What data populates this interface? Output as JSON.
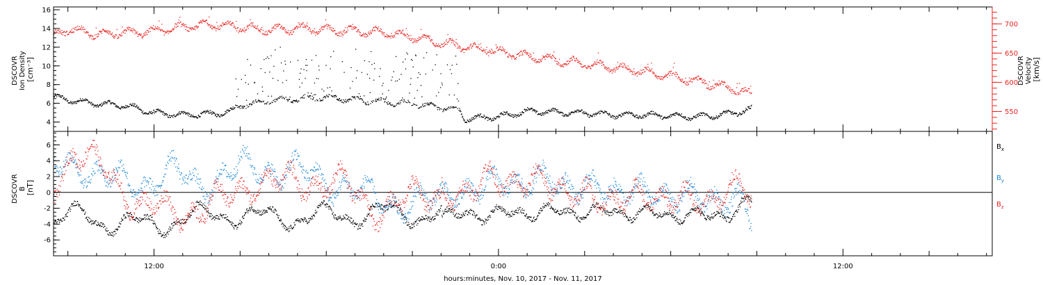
{
  "chart_data": [
    {
      "type": "scatter",
      "panel": "top",
      "xlabel": "hours:minutes, Nov. 10, 2017 - Nov. 11, 2017",
      "x_ticks": [
        "12:00",
        "0:00",
        "12:00"
      ],
      "x_tick_hours": [
        12,
        24,
        36
      ],
      "x_range_hours": [
        8.5,
        41.2
      ],
      "data_end_hour": 32.8,
      "left_axis": {
        "label_lines": [
          "DSCOVR",
          "Ion Density"
        ],
        "unit": "[cm⁻³]",
        "ylim": [
          3,
          16.3
        ],
        "ticks": [
          4,
          6,
          8,
          10,
          12,
          14,
          16
        ],
        "color": "#000000"
      },
      "right_axis": {
        "label_lines": [
          "DSCOVR",
          "Velocity"
        ],
        "unit": "[km/s]",
        "ylim": [
          516,
          729
        ],
        "ticks": [
          550,
          600,
          650,
          700
        ],
        "color": "#e8231f"
      },
      "series": [
        {
          "axis": "left",
          "color": "#000000",
          "points": [
            [
              8.5,
              6.7
            ],
            [
              9,
              6.4
            ],
            [
              10,
              6.0
            ],
            [
              11,
              5.8
            ],
            [
              12,
              5.0
            ],
            [
              13,
              4.8
            ],
            [
              14,
              4.9
            ],
            [
              14.7,
              5.2
            ],
            [
              15,
              5.8
            ],
            [
              16,
              6.3
            ],
            [
              17,
              6.5
            ],
            [
              18,
              6.7
            ],
            [
              19,
              6.4
            ],
            [
              20,
              6.2
            ],
            [
              21,
              6.0
            ],
            [
              22,
              5.6
            ],
            [
              22.6,
              5.4
            ],
            [
              22.8,
              4.4
            ],
            [
              24,
              4.6
            ],
            [
              25,
              5.2
            ],
            [
              26,
              5.1
            ],
            [
              27,
              5.0
            ],
            [
              28,
              4.8
            ],
            [
              29,
              4.8
            ],
            [
              30,
              4.7
            ],
            [
              31,
              4.6
            ],
            [
              32,
              4.9
            ],
            [
              32.8,
              5.4
            ]
          ]
        },
        {
          "axis": "right",
          "color": "#e8231f",
          "points": [
            [
              8.5,
              680
            ],
            [
              9,
              692
            ],
            [
              10,
              683
            ],
            [
              11,
              685
            ],
            [
              12,
              688
            ],
            [
              13,
              695
            ],
            [
              14,
              700
            ],
            [
              15,
              695
            ],
            [
              16,
              690
            ],
            [
              17,
              693
            ],
            [
              18,
              690
            ],
            [
              19,
              688
            ],
            [
              20,
              686
            ],
            [
              21,
              678
            ],
            [
              22,
              668
            ],
            [
              23,
              660
            ],
            [
              24,
              653
            ],
            [
              25,
              645
            ],
            [
              26,
              638
            ],
            [
              27,
              632
            ],
            [
              28,
              626
            ],
            [
              29,
              619
            ],
            [
              30,
              611
            ],
            [
              31,
              601
            ],
            [
              32,
              592
            ],
            [
              32.8,
              580
            ]
          ]
        }
      ]
    },
    {
      "type": "scatter",
      "panel": "bottom",
      "xlabel": "hours:minutes, Nov. 10, 2017 - Nov. 11, 2017",
      "x_ticks": [
        "12:00",
        "0:00",
        "12:00"
      ],
      "x_tick_hours": [
        12,
        24,
        36
      ],
      "x_range_hours": [
        8.5,
        41.2
      ],
      "data_end_hour": 32.8,
      "left_axis": {
        "label_lines": [
          "DSCOVR",
          "B"
        ],
        "unit": "[nT]",
        "ylim": [
          -8,
          7.7
        ],
        "ticks": [
          -6,
          -4,
          -2,
          0,
          2,
          4,
          6
        ],
        "color": "#000000"
      },
      "zero_line": true,
      "legend": {
        "placement": "right"
      },
      "series": [
        {
          "name": "B",
          "sub": "x",
          "color": "#000000",
          "points": [
            [
              8.5,
              -3.6
            ],
            [
              9.5,
              -2.8
            ],
            [
              10.5,
              -3.8
            ],
            [
              11.5,
              -4.1
            ],
            [
              12.5,
              -3.6
            ],
            [
              13.5,
              -3.0
            ],
            [
              14.5,
              -2.5
            ],
            [
              15.5,
              -3.2
            ],
            [
              16.5,
              -3.0
            ],
            [
              17.5,
              -3.2
            ],
            [
              18.5,
              -2.8
            ],
            [
              19.5,
              -2.6
            ],
            [
              20.5,
              -2.5
            ],
            [
              21.5,
              -2.8
            ],
            [
              22.5,
              -2.9
            ],
            [
              23.5,
              -2.7
            ],
            [
              24.5,
              -2.6
            ],
            [
              25.5,
              -2.3
            ],
            [
              26.5,
              -2.5
            ],
            [
              27.5,
              -2.4
            ],
            [
              28.5,
              -2.5
            ],
            [
              29.5,
              -2.6
            ],
            [
              30.5,
              -2.8
            ],
            [
              31.5,
              -2.9
            ],
            [
              32.3,
              -2.3
            ],
            [
              32.8,
              -1.0
            ]
          ]
        },
        {
          "name": "B",
          "sub": "y",
          "color": "#1a86d8",
          "points": [
            [
              8.5,
              3.0
            ],
            [
              9.5,
              3.8
            ],
            [
              10.5,
              1.5
            ],
            [
              11.5,
              1.0
            ],
            [
              12.5,
              2.8
            ],
            [
              13.5,
              1.0
            ],
            [
              14.5,
              2.5
            ],
            [
              15.5,
              3.2
            ],
            [
              16.5,
              3.0
            ],
            [
              17.5,
              2.0
            ],
            [
              18.5,
              1.2
            ],
            [
              19.5,
              -0.8
            ],
            [
              20.5,
              -1.2
            ],
            [
              21.5,
              -1.5
            ],
            [
              22.5,
              -0.5
            ],
            [
              23.5,
              1.2
            ],
            [
              24.5,
              1.0
            ],
            [
              25.5,
              1.8
            ],
            [
              26.5,
              0.8
            ],
            [
              27.5,
              0.5
            ],
            [
              28.5,
              0.2
            ],
            [
              29.5,
              -0.2
            ],
            [
              30.5,
              -0.5
            ],
            [
              31.5,
              -0.8
            ],
            [
              32.3,
              -1.0
            ],
            [
              32.8,
              -3.1
            ]
          ]
        },
        {
          "name": "B",
          "sub": "z",
          "color": "#e8231f",
          "points": [
            [
              8.5,
              1.0
            ],
            [
              9.2,
              5.5
            ],
            [
              10.5,
              2.0
            ],
            [
              11.5,
              -1.5
            ],
            [
              12.5,
              -2.5
            ],
            [
              13.5,
              -2.0
            ],
            [
              14.5,
              -1.0
            ],
            [
              15.5,
              1.8
            ],
            [
              16.5,
              1.0
            ],
            [
              17.5,
              1.5
            ],
            [
              18.5,
              1.2
            ],
            [
              19.5,
              -1.8
            ],
            [
              20.5,
              -1.5
            ],
            [
              21.5,
              0.0
            ],
            [
              22.5,
              -0.5
            ],
            [
              23.5,
              1.8
            ],
            [
              24.5,
              1.2
            ],
            [
              25.5,
              1.5
            ],
            [
              26.5,
              0.0
            ],
            [
              27.5,
              -0.8
            ],
            [
              28.5,
              -0.7
            ],
            [
              29.5,
              -0.5
            ],
            [
              30.5,
              -0.8
            ],
            [
              31.5,
              -1.0
            ],
            [
              32.3,
              0.8
            ],
            [
              32.8,
              0.2
            ]
          ]
        }
      ]
    }
  ]
}
